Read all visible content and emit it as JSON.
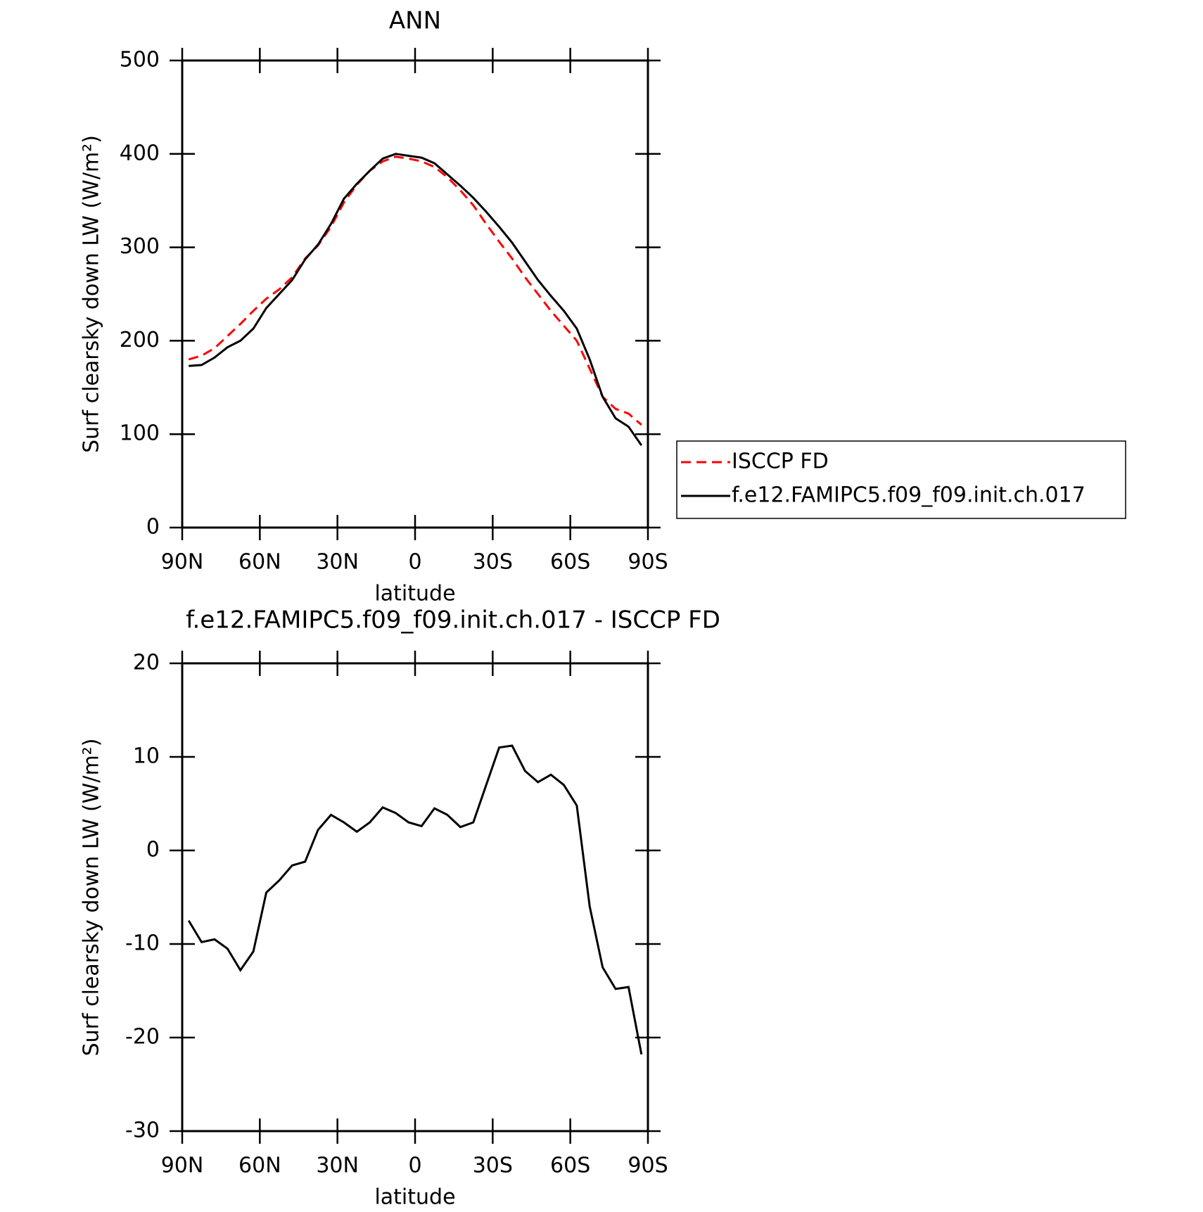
{
  "chart_data": [
    {
      "type": "line",
      "title": "ANN",
      "xlabel": "latitude",
      "ylabel": "Surf clearsky down LW (W/m²)",
      "x": [
        87.5,
        82.5,
        77.5,
        72.5,
        67.5,
        62.5,
        57.5,
        52.5,
        47.5,
        42.5,
        37.5,
        32.5,
        27.5,
        22.5,
        17.5,
        12.5,
        7.5,
        2.5,
        -2.5,
        -7.5,
        -12.5,
        -17.5,
        -22.5,
        -27.5,
        -32.5,
        -37.5,
        -42.5,
        -47.5,
        -52.5,
        -57.5,
        -62.5,
        -67.5,
        -72.5,
        -77.5,
        -82.5,
        -87.5
      ],
      "series": [
        {
          "name": "ISCCP FD",
          "color": "#ff0000",
          "dash": true,
          "values": [
            180,
            184,
            192,
            205,
            218,
            232,
            245,
            255,
            268,
            288,
            302,
            322,
            348,
            367,
            382,
            392,
            397,
            395,
            392,
            386,
            375,
            361,
            345,
            325,
            306,
            288,
            268,
            250,
            232,
            216,
            200,
            170,
            140,
            127,
            122,
            110
          ]
        },
        {
          "name": "f.e12.FAMIPC5.f09_f09.init.ch.017",
          "color": "#000000",
          "dash": false,
          "values": [
            173,
            174,
            182,
            193,
            200,
            213,
            235,
            250,
            265,
            287,
            303,
            325,
            352,
            368,
            382,
            395,
            400,
            398,
            396,
            390,
            378,
            366,
            353,
            338,
            322,
            305,
            285,
            265,
            248,
            232,
            213,
            180,
            140,
            117,
            108,
            88
          ]
        }
      ],
      "xlim": [
        90,
        -90
      ],
      "xticks": [
        {
          "value": 90,
          "label": "90N"
        },
        {
          "value": 60,
          "label": "60N"
        },
        {
          "value": 30,
          "label": "30N"
        },
        0,
        {
          "value": -30,
          "label": "30S"
        },
        {
          "value": -60,
          "label": "60S"
        },
        {
          "value": -90,
          "label": "90S"
        }
      ],
      "ylim": [
        0,
        500
      ],
      "yticks": [
        0,
        100,
        200,
        300,
        400,
        500
      ],
      "legend": "right"
    },
    {
      "type": "line",
      "title": "f.e12.FAMIPC5.f09_f09.init.ch.017 - ISCCP FD",
      "xlabel": "latitude",
      "ylabel": "Surf clearsky down LW (W/m²)",
      "x": [
        87.5,
        82.5,
        77.5,
        72.5,
        67.5,
        62.5,
        57.5,
        52.5,
        47.5,
        42.5,
        37.5,
        32.5,
        27.5,
        22.5,
        17.5,
        12.5,
        7.5,
        2.5,
        -2.5,
        -7.5,
        -12.5,
        -17.5,
        -22.5,
        -27.5,
        -32.5,
        -37.5,
        -42.5,
        -47.5,
        -52.5,
        -57.5,
        -62.5,
        -67.5,
        -72.5,
        -77.5,
        -82.5,
        -87.5
      ],
      "series": [
        {
          "color": "#000000",
          "dash": false,
          "values": [
            -7.5,
            -9.8,
            -9.5,
            -10.5,
            -12.8,
            -10.8,
            -4.5,
            -3.2,
            -1.6,
            -1.2,
            2.2,
            3.8,
            3.0,
            2.0,
            3.0,
            4.6,
            4.0,
            3.0,
            2.6,
            4.5,
            3.8,
            2.5,
            3.0,
            7.0,
            11.0,
            11.2,
            8.5,
            7.3,
            8.1,
            7.0,
            4.8,
            -6.0,
            -12.5,
            -14.8,
            -14.6,
            -21.8
          ]
        }
      ],
      "xlim": [
        90,
        -90
      ],
      "xticks": [
        {
          "value": 90,
          "label": "90N"
        },
        {
          "value": 60,
          "label": "60N"
        },
        {
          "value": 30,
          "label": "30N"
        },
        0,
        {
          "value": -30,
          "label": "30S"
        },
        {
          "value": -60,
          "label": "60S"
        },
        {
          "value": -90,
          "label": "90S"
        }
      ],
      "ylim": [
        -30,
        20
      ],
      "yticks": [
        -30,
        -20,
        -10,
        0,
        10,
        20
      ]
    }
  ]
}
